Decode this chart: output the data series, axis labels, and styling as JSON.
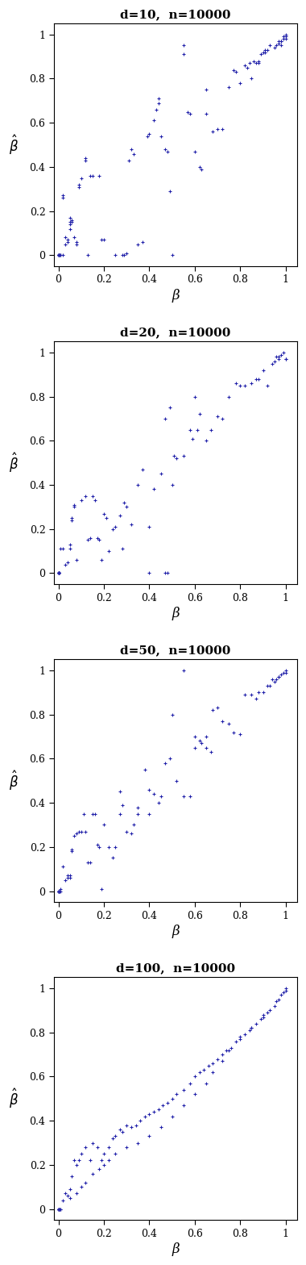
{
  "panels": [
    {
      "title": "d=10,  n=10000",
      "x": [
        0.0,
        0.0,
        0.0,
        0.0,
        0.0,
        0.0,
        0.0,
        0.0,
        0.0,
        0.0,
        0.0,
        0.0,
        0.0,
        0.0,
        0.0,
        0.0,
        0.01,
        0.01,
        0.02,
        0.02,
        0.02,
        0.03,
        0.03,
        0.04,
        0.04,
        0.05,
        0.05,
        0.05,
        0.05,
        0.06,
        0.06,
        0.07,
        0.08,
        0.08,
        0.09,
        0.09,
        0.1,
        0.12,
        0.12,
        0.13,
        0.14,
        0.15,
        0.18,
        0.19,
        0.2,
        0.25,
        0.28,
        0.29,
        0.3,
        0.31,
        0.32,
        0.33,
        0.35,
        0.37,
        0.39,
        0.4,
        0.42,
        0.43,
        0.44,
        0.44,
        0.45,
        0.47,
        0.48,
        0.49,
        0.5,
        0.55,
        0.57,
        0.58,
        0.6,
        0.62,
        0.63,
        0.65,
        0.65,
        0.68,
        0.7,
        0.72,
        0.75,
        0.77,
        0.78,
        0.8,
        0.82,
        0.83,
        0.84,
        0.85,
        0.86,
        0.87,
        0.88,
        0.88,
        0.89,
        0.9,
        0.91,
        0.91,
        0.92,
        0.93,
        0.95,
        0.96,
        0.97,
        0.97,
        0.98,
        0.98,
        0.99,
        0.99,
        1.0,
        1.0,
        1.0,
        0.98,
        0.55
      ],
      "y": [
        0.0,
        0.0,
        0.0,
        0.0,
        0.0,
        0.0,
        0.0,
        0.0,
        0.0,
        0.0,
        0.0,
        0.0,
        0.0,
        0.0,
        0.0,
        0.0,
        0.0,
        0.0,
        0.27,
        0.26,
        0.0,
        0.05,
        0.08,
        0.07,
        0.06,
        0.15,
        0.17,
        0.12,
        0.14,
        0.16,
        0.15,
        0.08,
        0.06,
        0.05,
        0.32,
        0.31,
        0.35,
        0.43,
        0.44,
        0.0,
        0.36,
        0.36,
        0.36,
        0.07,
        0.07,
        0.0,
        0.0,
        0.0,
        0.01,
        0.43,
        0.48,
        0.46,
        0.05,
        0.06,
        0.54,
        0.55,
        0.61,
        0.66,
        0.69,
        0.71,
        0.54,
        0.48,
        0.47,
        0.29,
        0.0,
        0.91,
        0.65,
        0.64,
        0.47,
        0.4,
        0.39,
        0.75,
        0.64,
        0.56,
        0.57,
        0.57,
        0.76,
        0.84,
        0.83,
        0.78,
        0.86,
        0.85,
        0.87,
        0.8,
        0.88,
        0.87,
        0.88,
        0.87,
        0.91,
        0.92,
        0.93,
        0.92,
        0.93,
        0.95,
        0.94,
        0.95,
        0.97,
        0.96,
        0.97,
        0.97,
        0.99,
        0.98,
        1.0,
        0.99,
        0.98,
        0.95,
        0.95
      ]
    },
    {
      "title": "d=20,  n=10000",
      "x": [
        0.0,
        0.0,
        0.0,
        0.0,
        0.0,
        0.0,
        0.0,
        0.0,
        0.0,
        0.0,
        0.0,
        0.0,
        0.0,
        0.0,
        0.0,
        0.0,
        0.0,
        0.0,
        0.01,
        0.02,
        0.03,
        0.04,
        0.05,
        0.05,
        0.06,
        0.06,
        0.07,
        0.07,
        0.08,
        0.1,
        0.12,
        0.13,
        0.14,
        0.15,
        0.16,
        0.17,
        0.18,
        0.19,
        0.2,
        0.21,
        0.22,
        0.24,
        0.25,
        0.27,
        0.28,
        0.29,
        0.3,
        0.32,
        0.35,
        0.37,
        0.4,
        0.42,
        0.45,
        0.47,
        0.49,
        0.5,
        0.51,
        0.52,
        0.55,
        0.58,
        0.59,
        0.6,
        0.61,
        0.62,
        0.65,
        0.67,
        0.7,
        0.72,
        0.75,
        0.78,
        0.8,
        0.82,
        0.85,
        0.87,
        0.88,
        0.9,
        0.92,
        0.94,
        0.95,
        0.96,
        0.97,
        0.97,
        0.98,
        0.99,
        1.0,
        1.0,
        0.4,
        0.47,
        0.48
      ],
      "y": [
        0.0,
        0.0,
        0.0,
        0.0,
        0.0,
        0.0,
        0.0,
        0.0,
        0.0,
        0.0,
        0.0,
        0.0,
        0.0,
        0.0,
        0.0,
        0.0,
        0.0,
        0.0,
        0.11,
        0.11,
        0.04,
        0.05,
        0.11,
        0.13,
        0.24,
        0.25,
        0.31,
        0.3,
        0.06,
        0.33,
        0.35,
        0.15,
        0.16,
        0.35,
        0.33,
        0.16,
        0.15,
        0.06,
        0.27,
        0.25,
        0.1,
        0.2,
        0.21,
        0.26,
        0.11,
        0.32,
        0.3,
        0.22,
        0.4,
        0.47,
        0.21,
        0.38,
        0.45,
        0.7,
        0.75,
        0.4,
        0.53,
        0.52,
        0.53,
        0.65,
        0.61,
        0.8,
        0.65,
        0.72,
        0.6,
        0.65,
        0.71,
        0.7,
        0.8,
        0.86,
        0.85,
        0.85,
        0.86,
        0.88,
        0.88,
        0.92,
        0.85,
        0.95,
        0.96,
        0.98,
        0.98,
        0.97,
        0.99,
        1.0,
        0.97,
        0.97,
        0.0,
        0.0,
        0.0
      ]
    },
    {
      "title": "d=50,  n=10000",
      "x": [
        0.0,
        0.0,
        0.0,
        0.0,
        0.0,
        0.0,
        0.0,
        0.0,
        0.0,
        0.0,
        0.0,
        0.0,
        0.0,
        0.0,
        0.01,
        0.01,
        0.02,
        0.03,
        0.04,
        0.04,
        0.05,
        0.05,
        0.06,
        0.06,
        0.07,
        0.08,
        0.09,
        0.1,
        0.11,
        0.12,
        0.13,
        0.14,
        0.15,
        0.16,
        0.17,
        0.18,
        0.19,
        0.2,
        0.22,
        0.24,
        0.25,
        0.27,
        0.28,
        0.3,
        0.32,
        0.33,
        0.35,
        0.38,
        0.4,
        0.42,
        0.44,
        0.45,
        0.47,
        0.49,
        0.5,
        0.52,
        0.55,
        0.58,
        0.6,
        0.6,
        0.62,
        0.63,
        0.65,
        0.65,
        0.67,
        0.68,
        0.7,
        0.72,
        0.75,
        0.77,
        0.8,
        0.82,
        0.85,
        0.87,
        0.88,
        0.9,
        0.92,
        0.93,
        0.94,
        0.95,
        0.96,
        0.97,
        0.97,
        0.98,
        0.99,
        1.0,
        1.0,
        0.55,
        0.27,
        0.35,
        0.4
      ],
      "y": [
        0.0,
        0.0,
        0.0,
        0.0,
        0.0,
        0.0,
        0.0,
        0.0,
        0.0,
        0.0,
        0.0,
        0.0,
        0.0,
        0.0,
        0.0,
        0.01,
        0.11,
        0.05,
        0.07,
        0.06,
        0.07,
        0.06,
        0.19,
        0.18,
        0.25,
        0.26,
        0.27,
        0.27,
        0.35,
        0.27,
        0.13,
        0.13,
        0.35,
        0.35,
        0.21,
        0.2,
        0.01,
        0.3,
        0.2,
        0.15,
        0.2,
        0.45,
        0.39,
        0.27,
        0.26,
        0.3,
        0.38,
        0.55,
        0.46,
        0.44,
        0.4,
        0.43,
        0.58,
        0.6,
        0.8,
        0.5,
        0.43,
        0.43,
        0.65,
        0.7,
        0.68,
        0.67,
        0.7,
        0.65,
        0.63,
        0.82,
        0.83,
        0.77,
        0.76,
        0.72,
        0.71,
        0.89,
        0.89,
        0.87,
        0.9,
        0.9,
        0.93,
        0.93,
        0.96,
        0.95,
        0.96,
        0.97,
        0.97,
        0.98,
        0.99,
        1.0,
        0.99,
        1.0,
        0.35,
        0.35,
        0.35
      ]
    },
    {
      "title": "d=100,  n=10000",
      "x": [
        0.0,
        0.0,
        0.0,
        0.0,
        0.0,
        0.0,
        0.0,
        0.0,
        0.0,
        0.0,
        0.0,
        0.0,
        0.0,
        0.0,
        0.01,
        0.01,
        0.02,
        0.03,
        0.04,
        0.05,
        0.06,
        0.07,
        0.08,
        0.09,
        0.1,
        0.12,
        0.14,
        0.15,
        0.17,
        0.19,
        0.2,
        0.22,
        0.24,
        0.25,
        0.27,
        0.28,
        0.3,
        0.32,
        0.34,
        0.36,
        0.38,
        0.4,
        0.42,
        0.44,
        0.46,
        0.48,
        0.5,
        0.52,
        0.55,
        0.58,
        0.6,
        0.62,
        0.64,
        0.66,
        0.68,
        0.7,
        0.72,
        0.74,
        0.76,
        0.78,
        0.8,
        0.82,
        0.84,
        0.85,
        0.87,
        0.89,
        0.9,
        0.92,
        0.93,
        0.95,
        0.96,
        0.97,
        0.98,
        0.99,
        1.0,
        1.0,
        0.0,
        0.05,
        0.08,
        0.1,
        0.12,
        0.15,
        0.18,
        0.2,
        0.22,
        0.25,
        0.3,
        0.35,
        0.4,
        0.45,
        0.5,
        0.55,
        0.6,
        0.65,
        0.68,
        0.72,
        0.75,
        0.8,
        0.85,
        0.9
      ],
      "y": [
        0.0,
        0.0,
        0.0,
        0.0,
        0.0,
        0.0,
        0.0,
        0.0,
        0.0,
        0.0,
        0.0,
        0.0,
        0.0,
        0.0,
        0.0,
        0.0,
        0.04,
        0.07,
        0.06,
        0.09,
        0.15,
        0.22,
        0.2,
        0.22,
        0.25,
        0.28,
        0.22,
        0.3,
        0.28,
        0.22,
        0.25,
        0.28,
        0.32,
        0.33,
        0.36,
        0.35,
        0.38,
        0.37,
        0.38,
        0.4,
        0.42,
        0.43,
        0.44,
        0.45,
        0.47,
        0.48,
        0.5,
        0.52,
        0.54,
        0.57,
        0.6,
        0.62,
        0.63,
        0.65,
        0.66,
        0.68,
        0.7,
        0.72,
        0.73,
        0.76,
        0.78,
        0.79,
        0.81,
        0.82,
        0.84,
        0.86,
        0.87,
        0.89,
        0.9,
        0.92,
        0.94,
        0.95,
        0.97,
        0.98,
        0.99,
        1.0,
        0.0,
        0.05,
        0.07,
        0.1,
        0.12,
        0.16,
        0.18,
        0.2,
        0.22,
        0.25,
        0.28,
        0.3,
        0.33,
        0.37,
        0.42,
        0.47,
        0.52,
        0.57,
        0.62,
        0.67,
        0.72,
        0.77,
        0.82,
        0.88
      ]
    }
  ],
  "dot_color": "#2222AA",
  "dot_size": 4,
  "marker": "+",
  "xlim": [
    -0.02,
    1.05
  ],
  "ylim": [
    -0.05,
    1.05
  ],
  "xticks": [
    0.0,
    0.2,
    0.4,
    0.6,
    0.8,
    1.0
  ],
  "yticks": [
    0.0,
    0.2,
    0.4,
    0.6,
    0.8,
    1.0
  ],
  "xlabel": "β",
  "ylabel_text": "$\\hat{\\beta}$",
  "figsize": [
    3.8,
    15.68
  ],
  "dpi": 100
}
